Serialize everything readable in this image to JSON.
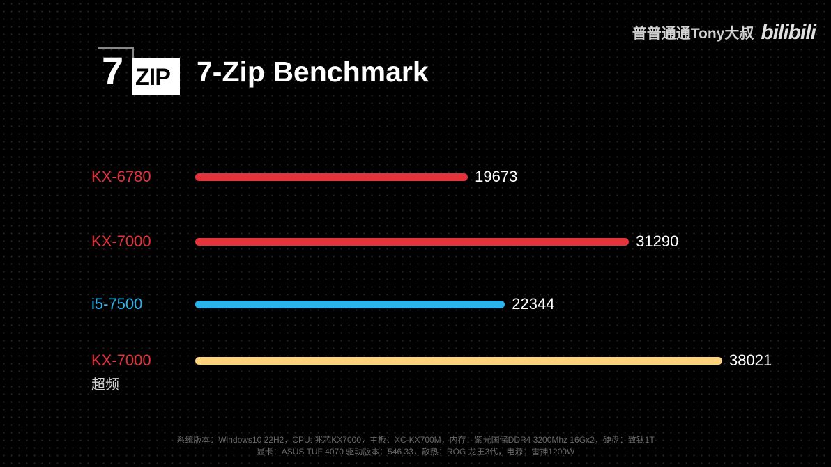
{
  "watermark": {
    "channel": "普普通通Tony大叔",
    "brand": "bilibili"
  },
  "logo": {
    "seven": "7",
    "zip": "ZIP"
  },
  "chart_data": {
    "type": "bar",
    "orientation": "horizontal",
    "title": "7-Zip Benchmark",
    "categories": [
      "KX-6780",
      "KX-7000",
      "i5-7500",
      "KX-7000 超频"
    ],
    "series": [
      {
        "name": "7-Zip Benchmark",
        "values": [
          19673,
          31290,
          22344,
          38021
        ]
      }
    ],
    "rows": [
      {
        "label": "KX-6780",
        "sublabel": "",
        "value": 19673,
        "label_color": "#e5323b",
        "bar_color": "#e5323b",
        "value_text": "19673"
      },
      {
        "label": "KX-7000",
        "sublabel": "",
        "value": 31290,
        "label_color": "#e5323b",
        "bar_color": "#e5323b",
        "value_text": "31290"
      },
      {
        "label": "i5-7500",
        "sublabel": "",
        "value": 22344,
        "label_color": "#2ab4ee",
        "bar_color": "#2ab4ee",
        "value_text": "22344"
      },
      {
        "label": "KX-7000",
        "sublabel": "超频",
        "value": 38021,
        "label_color": "#e5323b",
        "bar_color": "#fdd27c",
        "value_text": "38021"
      }
    ],
    "xlim": [
      0,
      38021
    ],
    "grid": false
  },
  "footer": {
    "line1": "系统版本：Windows10 22H2，CPU: 兆芯KX7000，主板：XC-KX700M，内存：紫光国储DDR4 3200Mhz 16Gx2，硬盘：致钛1T",
    "line2": "显卡：ASUS TUF 4070 驱动版本：546.33，散热：ROG 龙王3代，电源：雷神1200W"
  }
}
